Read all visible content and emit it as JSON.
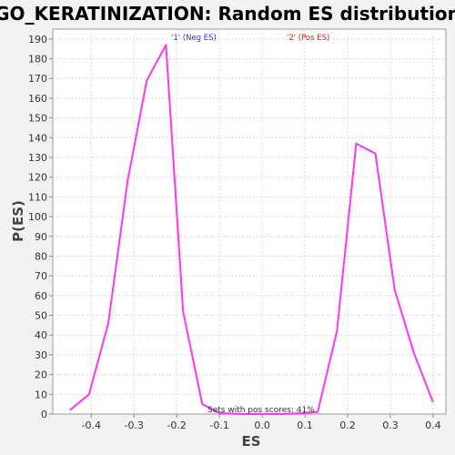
{
  "colors": {
    "line": "#ff33ff",
    "neg_label": "#3333cc",
    "pos_label": "#cc2222"
  },
  "chart_data": {
    "type": "line",
    "title": "GO_KERATINIZATION: Random ES distribution",
    "xlabel": "ES",
    "ylabel": "P(ES)",
    "xlim": [
      -0.49,
      0.43
    ],
    "ylim": [
      0,
      195
    ],
    "x_ticks": [
      -0.4,
      -0.3,
      -0.2,
      -0.1,
      0.0,
      0.1,
      0.2,
      0.3,
      0.4
    ],
    "x_tick_labels": [
      "-0.4",
      "-0.3",
      "-0.2",
      "-0.1",
      "0.0",
      "0.1",
      "0.2",
      "0.3",
      "0.4"
    ],
    "y_ticks": [
      0,
      10,
      20,
      30,
      40,
      50,
      60,
      70,
      80,
      90,
      100,
      110,
      120,
      130,
      140,
      150,
      160,
      170,
      180,
      190
    ],
    "grid": true,
    "series": [
      {
        "x": [
          -0.45,
          -0.405,
          -0.36,
          -0.315,
          -0.27,
          -0.225,
          -0.185,
          -0.14,
          -0.1,
          -0.05,
          0.0,
          0.05,
          0.1,
          0.13,
          0.175,
          0.22,
          0.265,
          0.31,
          0.355,
          0.4
        ],
        "y": [
          2,
          10,
          46,
          118,
          169,
          187,
          52,
          5,
          0.5,
          0,
          0,
          0,
          0.5,
          1,
          42,
          137,
          132,
          63,
          31,
          6
        ]
      }
    ],
    "annotations": {
      "neg_label": "'1' (Neg ES)",
      "pos_label": "'2' (Pos ES)",
      "pos_score_note": "Sets with pos scores: 41%"
    }
  }
}
